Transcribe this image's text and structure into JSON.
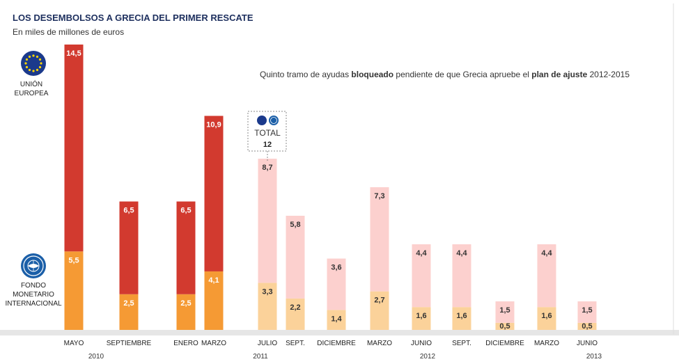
{
  "chart_data": {
    "type": "bar",
    "title": "LOS DESEMBOLSOS A GRECIA DEL PRIMER RESCATE",
    "subtitle": "En miles de millones de euros",
    "categories": [
      "MAYO",
      "SEPTIEMBRE",
      "ENERO",
      "MARZO",
      "JULIO",
      "SEPT.",
      "DICIEMBRE",
      "MARZO",
      "JUNIO",
      "SEPT.",
      "DICIEMBRE",
      "MARZO",
      "JUNIO"
    ],
    "years": [
      {
        "label": "2010"
      },
      {
        "label": "2011"
      },
      {
        "label": "2012"
      },
      {
        "label": "2013"
      }
    ],
    "series": [
      {
        "name": "FONDO MONETARIO INTERNACIONAL",
        "values": [
          5.5,
          2.5,
          2.5,
          4.1,
          3.3,
          2.2,
          1.4,
          2.7,
          1.6,
          1.6,
          0.5,
          1.6,
          0.5
        ],
        "labels": [
          "5,5",
          "2,5",
          "2,5",
          "4,1",
          "3,3",
          "2,2",
          "1,4",
          "2,7",
          "1,6",
          "1,6",
          "0,5",
          "1,6",
          "0,5"
        ]
      },
      {
        "name": "UNIÓN EUROPEA",
        "values": [
          14.5,
          6.5,
          6.5,
          10.9,
          8.7,
          5.8,
          3.6,
          7.3,
          4.4,
          4.4,
          1.5,
          4.4,
          1.5
        ],
        "labels": [
          "14,5",
          "6,5",
          "6,5",
          "10,9",
          "8,7",
          "5,8",
          "3,6",
          "7,3",
          "4,4",
          "4,4",
          "1,5",
          "4,4",
          "1,5"
        ]
      }
    ],
    "status": [
      "paid",
      "paid",
      "paid",
      "paid",
      "blocked",
      "blocked",
      "blocked",
      "blocked",
      "blocked",
      "blocked",
      "blocked",
      "blocked",
      "blocked"
    ],
    "legend": {
      "eu_line1": "UNIÓN",
      "eu_line2": "EUROPEA",
      "imf_line1": "FONDO",
      "imf_line2": "MONETARIO",
      "imf_line3": "INTERNACIONAL"
    },
    "annotation": {
      "text_part1": "Quinto tramo de ayudas ",
      "bold1": "bloqueado",
      "text_part2": " pendiente  de que Grecia apruebe el ",
      "bold2": "plan de ajuste",
      "text_part3": " 2012-2015"
    },
    "total_box": {
      "label": "TOTAL",
      "value": "12"
    },
    "ylim": [
      0,
      15
    ],
    "colors": {
      "eu_paid": "#d23a2f",
      "imf_paid": "#f59a34",
      "eu_blocked": "#fcd0ce",
      "imf_blocked": "#fbd29a",
      "baseline": "#e6e6e6",
      "eu_blue": "#1b3a8c",
      "label_light": "#ffffff",
      "label_dark": "#333333"
    }
  }
}
